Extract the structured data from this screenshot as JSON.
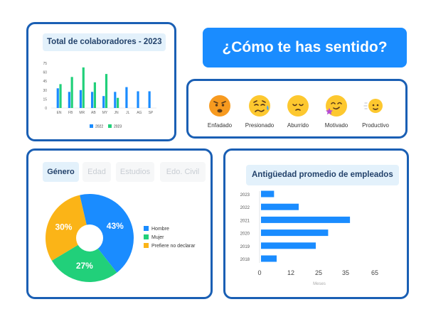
{
  "colors": {
    "border": "#1a5fb4",
    "primary": "#1a8cff",
    "green": "#21d07a",
    "orange": "#fbb417",
    "title_bg": "#e3f1fb",
    "title_text": "#23426b"
  },
  "bar_card": {
    "title": "Total de colaboradores - 2023"
  },
  "question": {
    "text": "¿Cómo te has sentido?"
  },
  "moods": [
    {
      "label": "Enfadado",
      "icon": "angry-face-icon"
    },
    {
      "label": "Presionado",
      "icon": "anxious-sweat-face-icon"
    },
    {
      "label": "Aburrido",
      "icon": "bored-face-icon"
    },
    {
      "label": "Motivado",
      "icon": "motivated-star-face-icon"
    },
    {
      "label": "Productivo",
      "icon": "productive-dash-face-icon"
    }
  ],
  "demographics": {
    "tabs": [
      "Género",
      "Edad",
      "Estudios",
      "Edo. Civil"
    ],
    "active_tab": "Género"
  },
  "tenure_card": {
    "title": "Antigüedad promedio de empleados"
  },
  "chart_data": [
    {
      "type": "bar",
      "title": "Total de colaboradores - 2023",
      "categories": [
        "EN",
        "FB",
        "MR",
        "AB",
        "MY",
        "JN",
        "JL",
        "AG",
        "SP"
      ],
      "series": [
        {
          "name": "2022",
          "color": "#1a8cff",
          "values": [
            33,
            27,
            30,
            27,
            20,
            27,
            35,
            28,
            28
          ]
        },
        {
          "name": "2023",
          "color": "#21d07a",
          "values": [
            40,
            52,
            68,
            43,
            57,
            17,
            null,
            null,
            null
          ]
        }
      ],
      "yticks": [
        0,
        15,
        30,
        45,
        60,
        75
      ],
      "ylim": [
        0,
        75
      ],
      "legend": "bottom"
    },
    {
      "type": "pie",
      "slices": [
        {
          "label": "Hombre",
          "value": 43,
          "text": "43%",
          "color": "#1a8cff"
        },
        {
          "label": "Mujer",
          "value": 27,
          "text": "27%",
          "color": "#21d07a"
        },
        {
          "label": "Prefiere no declarar",
          "value": 30,
          "text": "30%",
          "color": "#fbb417"
        }
      ],
      "legend": "right"
    },
    {
      "type": "bar",
      "orientation": "horizontal",
      "title": "Antigüedad promedio de empleados",
      "categories": [
        "2023",
        "2022",
        "2021",
        "2020",
        "2019",
        "2018"
      ],
      "values": [
        5,
        15,
        38,
        28,
        23,
        6
      ],
      "xticks": [
        0,
        12,
        25,
        35,
        65
      ],
      "xlabel": "Meses"
    }
  ]
}
